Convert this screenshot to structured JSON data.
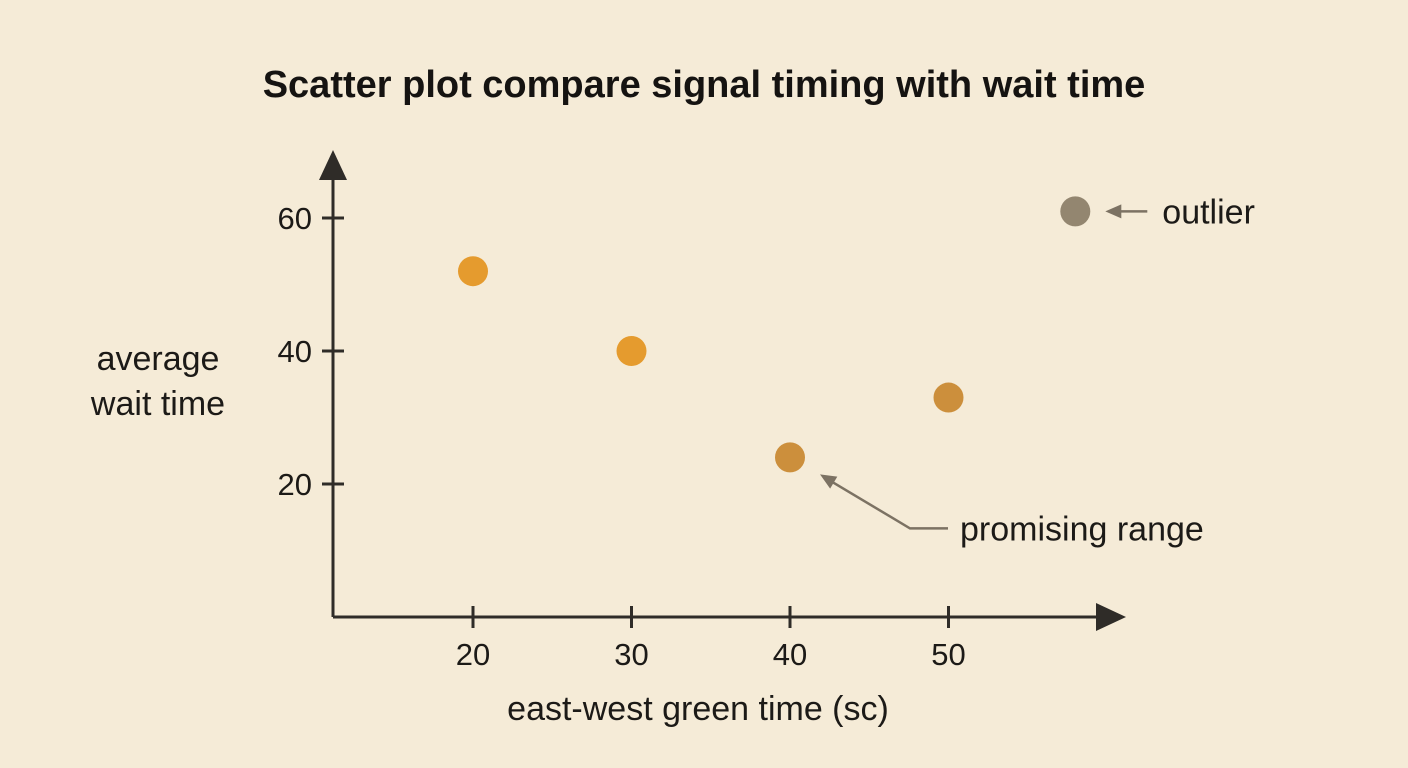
{
  "chart_data": {
    "type": "scatter",
    "title": "Scatter plot compare signal timing with wait time",
    "xlabel": "east-west green time (sc)",
    "ylabel_lines": [
      "average",
      "wait time"
    ],
    "x_ticks": [
      20,
      30,
      40,
      50
    ],
    "y_ticks": [
      20,
      40,
      60
    ],
    "points": [
      {
        "x": 20,
        "y": 52,
        "color": "#e59b2e"
      },
      {
        "x": 30,
        "y": 40,
        "color": "#e59b2e"
      },
      {
        "x": 40,
        "y": 24,
        "color": "#cc8f3c"
      },
      {
        "x": 50,
        "y": 33,
        "color": "#cc8f3c"
      },
      {
        "x": 58,
        "y": 61,
        "color": "#938670"
      }
    ],
    "annotations": [
      {
        "text": "outlier",
        "target_index": 4
      },
      {
        "text": "promising range",
        "target_index": 2
      }
    ],
    "colors": {
      "background": "#f5ebd7",
      "axis": "#2f2c28",
      "annotation_arrow": "#7c7263"
    }
  }
}
